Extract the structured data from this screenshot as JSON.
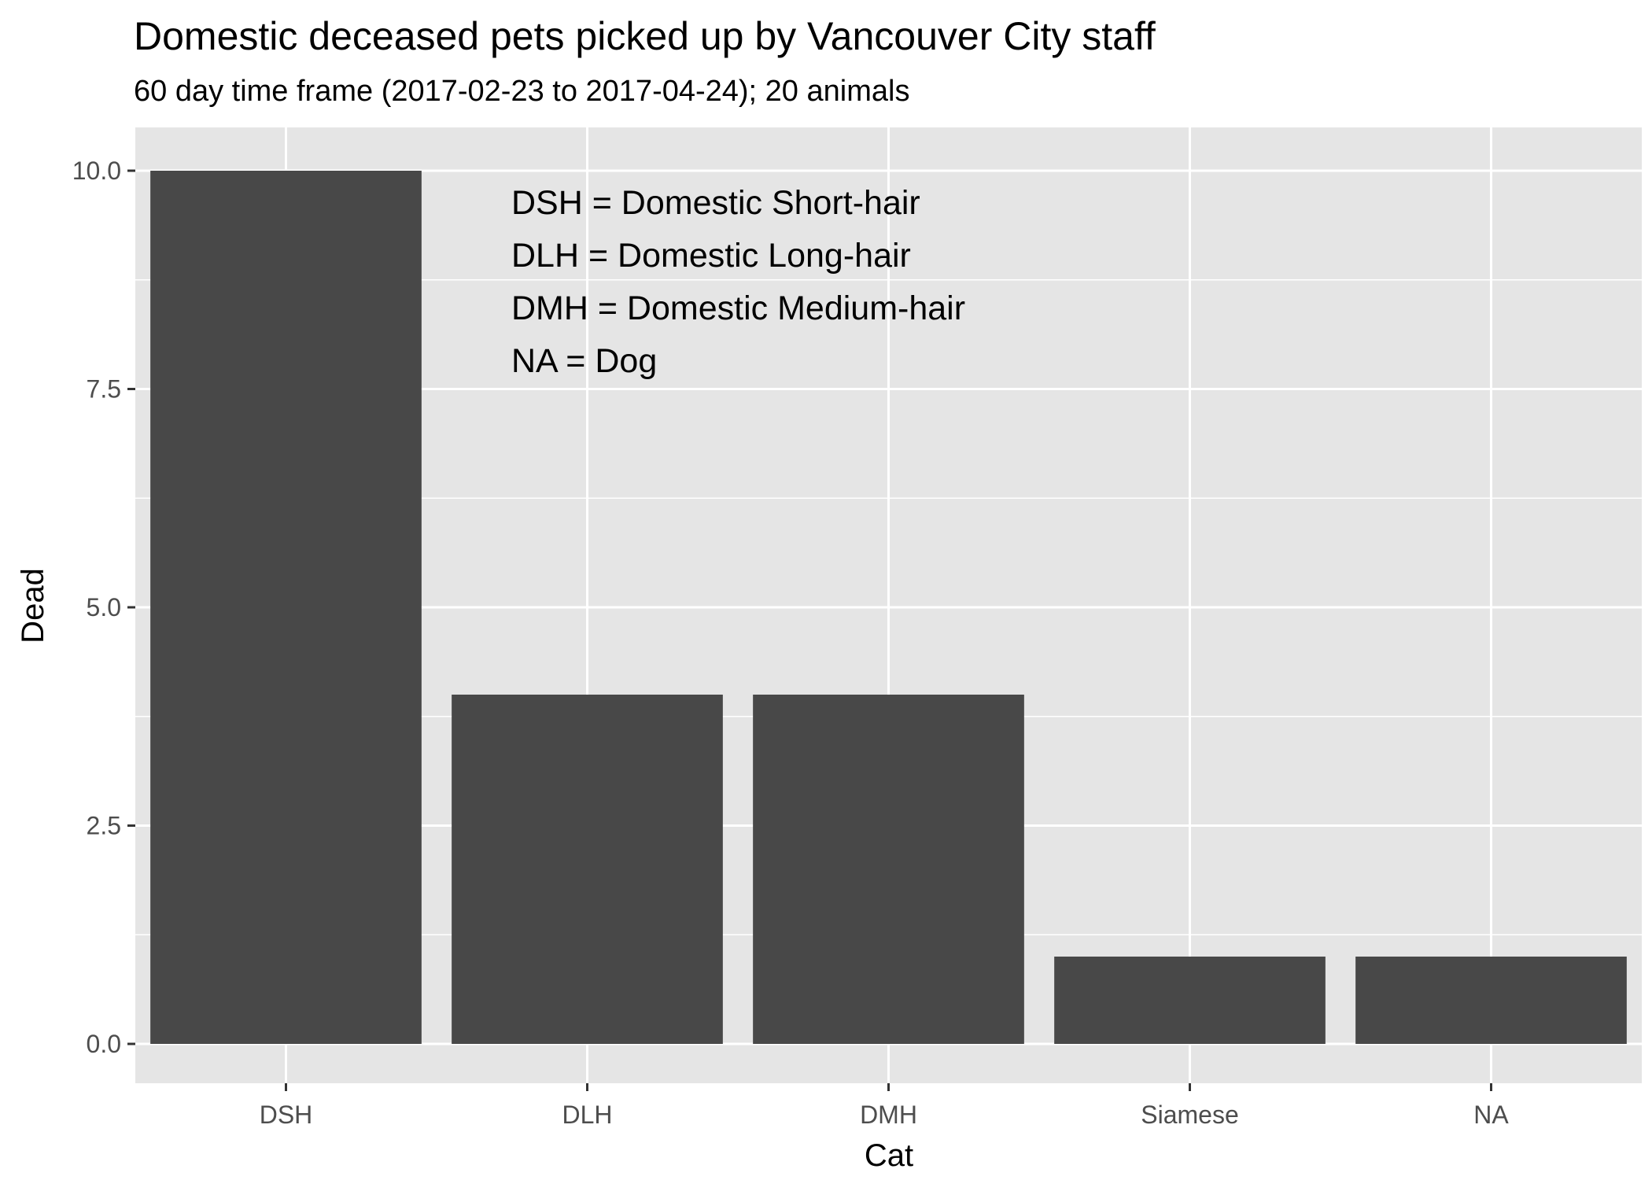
{
  "chart_data": {
    "type": "bar",
    "title": "Domestic deceased pets picked up by Vancouver City staff",
    "subtitle": "60 day time frame (2017-02-23 to 2017-04-24); 20 animals",
    "xlabel": "Cat",
    "ylabel": "Dead",
    "categories": [
      "DSH",
      "DLH",
      "DMH",
      "Siamese",
      "NA"
    ],
    "values": [
      10,
      4,
      4,
      1,
      1
    ],
    "ylim": [
      0,
      10.5
    ],
    "yticks": [
      "0.0",
      "2.5",
      "5.0",
      "7.5",
      "10.0"
    ],
    "ytick_values": [
      0,
      2.5,
      5,
      7.5,
      10
    ],
    "grid": true,
    "annotations": [
      "DSH = Domestic Short-hair",
      "DLH = Domestic Long-hair",
      "DMH = Domestic Medium-hair",
      "NA = Dog"
    ],
    "colors": {
      "bar": "#484848",
      "panel": "#e5e5e5",
      "grid": "#ffffff"
    }
  }
}
